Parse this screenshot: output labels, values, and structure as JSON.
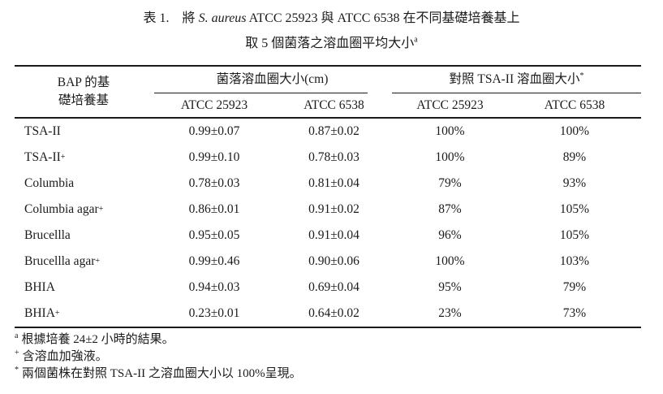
{
  "page": {
    "background": "#ffffff",
    "text_color": "#1b1b1b"
  },
  "title": {
    "label": "表 1.",
    "pre_italic": "將 ",
    "species_italic": "S. aureus",
    "post_italic": " ATCC 25923 與 ATCC 6538 在不同基礎培養基上",
    "line2": "取 5 個菌落之溶血圈平均大小",
    "line2_sup": "a"
  },
  "table": {
    "row_header_line1": "BAP 的基",
    "row_header_line2": "礎培養基",
    "groups": [
      {
        "label": "菌落溶血圈大小(cm)",
        "sup": ""
      },
      {
        "label": "對照 TSA-II 溶血圈大小",
        "sup": "*"
      }
    ],
    "columns": [
      "ATCC 25923",
      "ATCC 6538",
      "ATCC 25923",
      "ATCC 6538"
    ],
    "rows": [
      {
        "label": "TSA-II",
        "label_sup": "",
        "cells": [
          "0.99±0.07",
          "0.87±0.02",
          "100%",
          "100%"
        ]
      },
      {
        "label": "TSA-II",
        "label_sup": "+",
        "cells": [
          "0.99±0.10",
          "0.78±0.03",
          "100%",
          "89%"
        ]
      },
      {
        "label": "Columbia",
        "label_sup": "",
        "cells": [
          "0.78±0.03",
          "0.81±0.04",
          "79%",
          "93%"
        ]
      },
      {
        "label": "Columbia agar",
        "label_sup": "+",
        "cells": [
          "0.86±0.01",
          "0.91±0.02",
          "87%",
          "105%"
        ]
      },
      {
        "label": "Brucellla",
        "label_sup": "",
        "cells": [
          "0.95±0.05",
          "0.91±0.04",
          "96%",
          "105%"
        ]
      },
      {
        "label": "Brucellla agar",
        "label_sup": "+",
        "cells": [
          "0.99±0.46",
          "0.90±0.06",
          "100%",
          "103%"
        ]
      },
      {
        "label": "BHIA",
        "label_sup": "",
        "cells": [
          "0.94±0.03",
          "0.69±0.04",
          "95%",
          "79%"
        ]
      },
      {
        "label": "BHIA",
        "label_sup": "+",
        "cells": [
          "0.23±0.01",
          "0.64±0.02",
          "23%",
          "73%"
        ]
      }
    ]
  },
  "footnotes": [
    {
      "marker": "a",
      "text": "根據培養 24±2 小時的結果。"
    },
    {
      "marker": "+",
      "text": "含溶血加強液。"
    },
    {
      "marker": "*",
      "text": "兩個菌株在對照 TSA-II 之溶血圈大小以 100%呈現。"
    }
  ]
}
